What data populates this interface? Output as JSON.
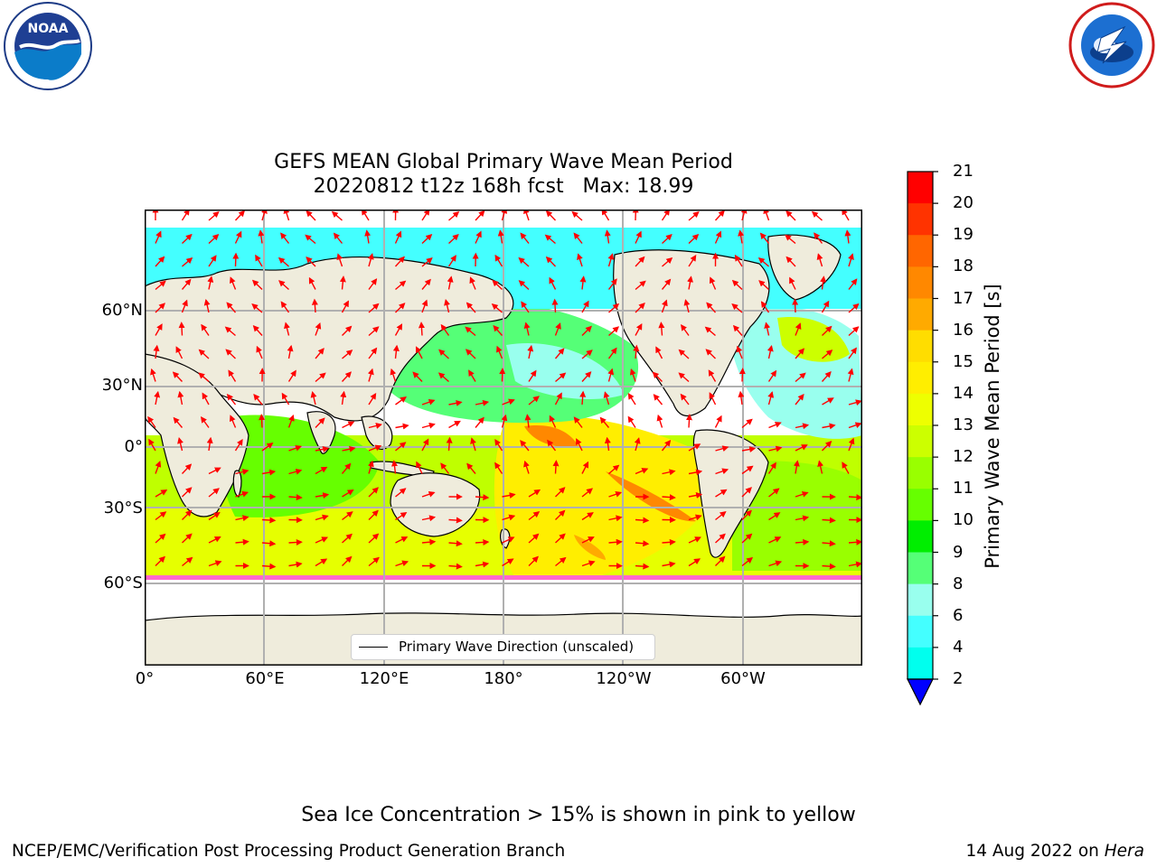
{
  "header": {
    "title_line1": "GEFS MEAN Global Primary Wave Mean Period",
    "title_line2": "20220812 t12z 168h fcst   Max: 18.99",
    "left_logo": "NOAA",
    "left_logo_ring_text": "NATIONAL OCEANIC AND ATMOSPHERIC ADMINISTRATION · U.S. DEPARTMENT OF COMMERCE",
    "right_logo_ring_text": "NATIONAL WEATHER SERVICE"
  },
  "map": {
    "lat_ticks": [
      "60°N",
      "30°N",
      "0°",
      "30°S",
      "60°S"
    ],
    "lon_ticks": [
      "0°",
      "60°E",
      "120°E",
      "180°",
      "120°W",
      "60°W"
    ],
    "legend_label": "Primary Wave Direction (unscaled)",
    "colors": {
      "land": "#efecdc",
      "ice": "#ff66cc",
      "arrow": "#ff0000",
      "grid": "#b0b0b0"
    }
  },
  "colorbar": {
    "label": "Primary Wave Mean Period [s]",
    "ticks": [
      "21",
      "20",
      "19",
      "18",
      "17",
      "16",
      "15",
      "14",
      "13",
      "12",
      "11",
      "10",
      "9",
      "8",
      "6",
      "4",
      "2"
    ],
    "colors": [
      "#ff0000",
      "#ff3300",
      "#ff6600",
      "#ff8800",
      "#ffaa00",
      "#ffdd00",
      "#ffee00",
      "#eeff00",
      "#ccff00",
      "#99ff00",
      "#66ff00",
      "#00ee00",
      "#55ff77",
      "#99ffee",
      "#44ffff",
      "#00ffee",
      "#00ccff",
      "#0066ff"
    ],
    "extend_color": "#0000ff"
  },
  "footer": {
    "note": "Sea Ice Concentration > 15% is shown in pink to yellow",
    "left": "NCEP/EMC/Verification Post Processing Product Generation Branch",
    "right_prefix": "14 Aug 2022 on ",
    "right_host": "Hera"
  }
}
